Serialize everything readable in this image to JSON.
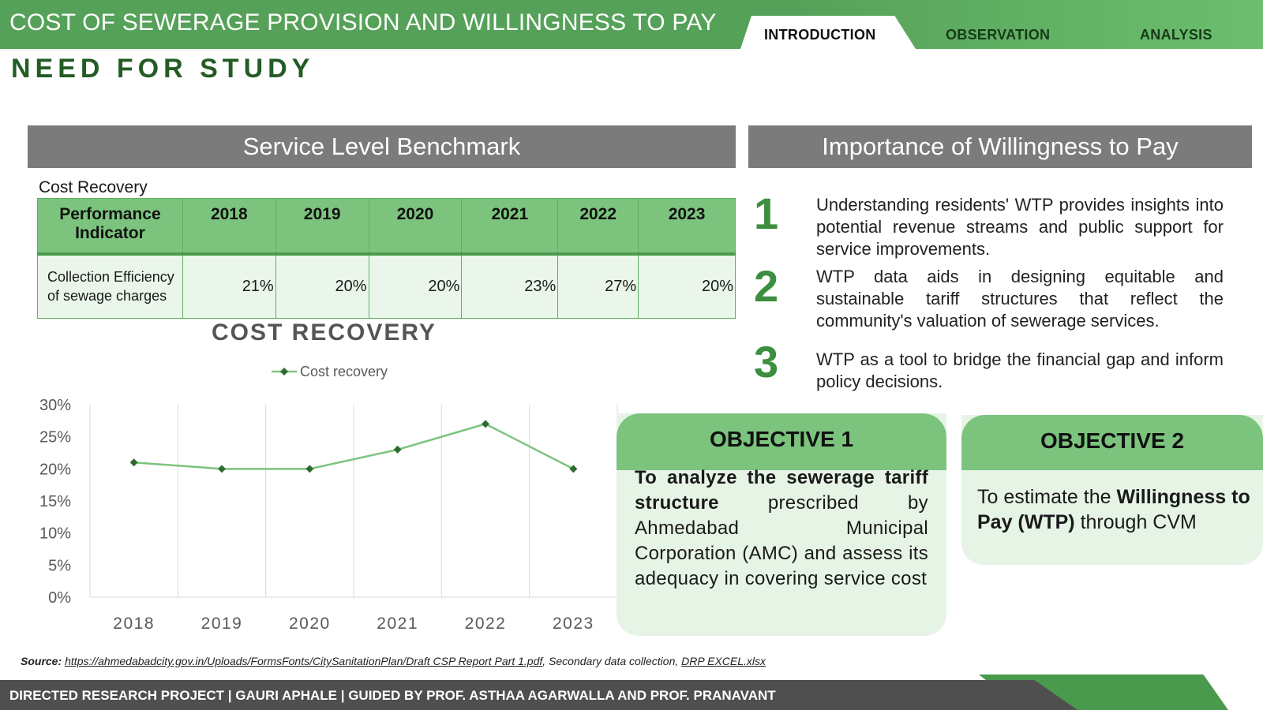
{
  "header": {
    "title": "COST OF SEWERAGE PROVISION AND WILLINGNESS TO PAY",
    "tabs": [
      {
        "label": "INTRODUCTION",
        "active": true
      },
      {
        "label": "OBSERVATION",
        "active": false
      },
      {
        "label": "ANALYSIS",
        "active": false
      }
    ]
  },
  "section_title": "NEED FOR STUDY",
  "left_panel": {
    "heading": "Service Level Benchmark",
    "table_caption": "Cost Recovery",
    "table": {
      "headers": [
        "Performance Indicator",
        "2018",
        "2019",
        "2020",
        "2021",
        "2022",
        "2023"
      ],
      "rows": [
        {
          "indicator": "Collection Efficiency of sewage charges",
          "values": [
            "21%",
            "20%",
            "20%",
            "23%",
            "27%",
            "20%"
          ]
        }
      ]
    }
  },
  "chart_data": {
    "type": "line",
    "title": "COST RECOVERY",
    "categories": [
      "2018",
      "2019",
      "2020",
      "2021",
      "2022",
      "2023"
    ],
    "series": [
      {
        "name": "Cost recovery",
        "values": [
          21,
          20,
          20,
          23,
          27,
          20
        ],
        "color": "#7cc47e"
      }
    ],
    "y_tick_labels": [
      "30%",
      "25%",
      "20%",
      "15%",
      "10%",
      "5%",
      "0%"
    ],
    "ylim": [
      0,
      30
    ],
    "grid": "vertical",
    "legend": "top"
  },
  "right_panel": {
    "heading": "Importance of Willingness to Pay",
    "points": [
      {
        "num": "1",
        "text": "Understanding residents' WTP provides insights into potential revenue streams and public support for service improvements."
      },
      {
        "num": "2",
        "text": "WTP data aids in designing equitable and sustainable tariff structures that reflect the community's valuation of sewerage services."
      },
      {
        "num": "3",
        "text": "WTP as a tool to bridge the financial gap and inform policy decisions."
      }
    ]
  },
  "objectives": {
    "obj1": {
      "title": "OBJECTIVE 1",
      "bold": "To analyze the sewerage tariff structure",
      "rest": " prescribed by Ahmedabad Municipal Corporation (AMC) and assess its adequacy in covering service cost"
    },
    "obj2": {
      "title": "OBJECTIVE 2",
      "pre": "To estimate the ",
      "bold": "Willingness to Pay (WTP)",
      "post": " through CVM"
    }
  },
  "source": {
    "label": "Source:",
    "link1": "https://ahmedabadcity.gov.in/Uploads/FormsFonts/CitySanitationPlan/Draft CSP Report Part 1.pdf",
    "middle": ", Secondary data collection, ",
    "link2": "DRP EXCEL.xlsx"
  },
  "footer": "DIRECTED RESEARCH PROJECT | GAURI APHALE | GUIDED BY PROF. ASTHAA AGARWALLA AND PROF. PRANAVANT",
  "colors": {
    "accent": "#56a159",
    "accent_light": "#7cc47e",
    "dark_green": "#235c24",
    "grey_header": "#7b7b7b",
    "footer_grey": "#4f4f4f"
  }
}
